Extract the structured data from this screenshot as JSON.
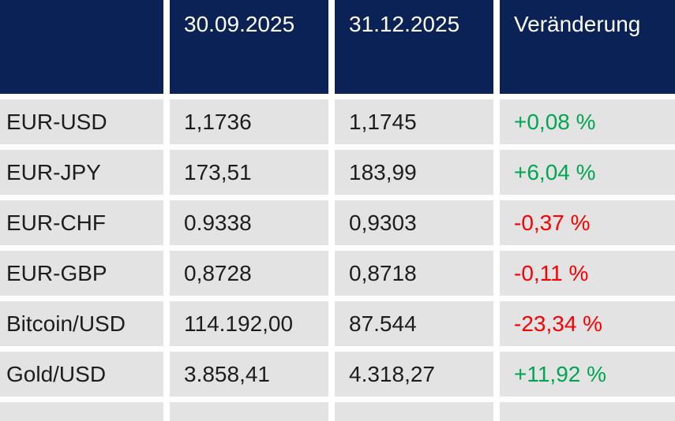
{
  "chart_data": {
    "type": "table",
    "columns": [
      "",
      "30.09.2025",
      "31.12.2025",
      "Veränderung"
    ],
    "rows": [
      {
        "instrument": "EUR-USD",
        "value_30_09_2025": "1,1736",
        "value_31_12_2025": "1,1745",
        "change": "+0,08 %",
        "direction": "up"
      },
      {
        "instrument": "EUR-JPY",
        "value_30_09_2025": "173,51",
        "value_31_12_2025": "183,99",
        "change": "+6,04 %",
        "direction": "up"
      },
      {
        "instrument": "EUR-CHF",
        "value_30_09_2025": "0.9338",
        "value_31_12_2025": "0,9303",
        "change": "-0,37 %",
        "direction": "down"
      },
      {
        "instrument": "EUR-GBP",
        "value_30_09_2025": "0,8728",
        "value_31_12_2025": "0,8718",
        "change": "-0,11 %",
        "direction": "down"
      },
      {
        "instrument": "Bitcoin/USD",
        "value_30_09_2025": "114.192,00",
        "value_31_12_2025": "87.544",
        "change": "-23,34 %",
        "direction": "down"
      },
      {
        "instrument": "Gold/USD",
        "value_30_09_2025": "3.858,41",
        "value_31_12_2025": "4.318,27",
        "change": "+11,92 %",
        "direction": "up"
      }
    ],
    "legend": "none",
    "grid": "white gaps between gray cells"
  },
  "colors": {
    "header_bg": "#0b2257",
    "header_text": "#ffffff",
    "row_bg": "#e3e3e3",
    "text": "#1d1d1d",
    "positive": "#00a651",
    "negative": "#fa0000",
    "background": "#ffffff"
  }
}
